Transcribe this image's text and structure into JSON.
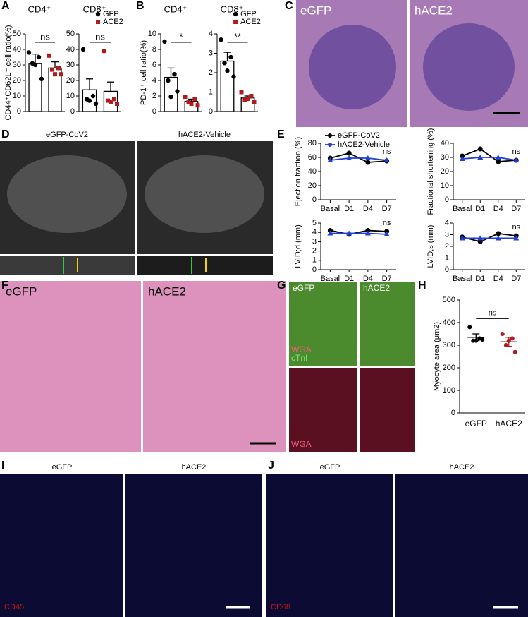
{
  "panel_labels": [
    "A",
    "B",
    "C",
    "D",
    "E",
    "F",
    "G",
    "H",
    "I",
    "J"
  ],
  "image_labels": {
    "C": [
      "eGFP",
      "hACE2"
    ],
    "D": [
      "eGFP-CoV2",
      "hACE2-Vehicle"
    ],
    "F": [
      "eGFP",
      "hACE2"
    ],
    "G": [
      "eGFP",
      "hACE2",
      "WGA",
      "cTnI",
      "WGA"
    ],
    "I": [
      "eGFP",
      "hACE2",
      "CD45"
    ],
    "J": [
      "eGFP",
      "hACE2",
      "CD68"
    ]
  },
  "chart_data": [
    {
      "type": "bar",
      "title": "CD4⁺",
      "y_label": "CD44⁺CD62L⁻ cell ratio(%)",
      "ylim": [
        0,
        50
      ],
      "yticks": [
        0,
        10,
        20,
        30,
        40,
        50
      ],
      "annotation": "ns",
      "series": [
        {
          "color": "#000000",
          "values": [
            31
          ],
          "errors": [
            6
          ],
          "points": [
            38,
            35,
            31,
            21,
            30
          ]
        },
        {
          "color": "#b01c1c",
          "values": [
            28
          ],
          "errors": [
            4
          ],
          "points": [
            36,
            28,
            27,
            24,
            24
          ]
        }
      ]
    },
    {
      "type": "bar",
      "title": "CD8⁺",
      "ylim": [
        0,
        50
      ],
      "yticks": [
        0,
        10,
        20,
        30,
        40,
        50
      ],
      "annotation": "ns",
      "series": [
        {
          "name": "GFP",
          "color": "#000000",
          "values": [
            14
          ],
          "errors": [
            7
          ],
          "points": [
            40,
            10,
            8,
            5,
            7
          ]
        },
        {
          "name": "ACE2",
          "color": "#b01c1c",
          "values": [
            13
          ],
          "errors": [
            6
          ],
          "points": [
            39,
            8,
            7,
            5,
            6
          ]
        }
      ]
    },
    {
      "type": "bar",
      "title": "CD4⁺",
      "y_label": "PD-1⁺ cell ratio(%)",
      "ylim": [
        0,
        10
      ],
      "yticks": [
        0,
        2,
        4,
        6,
        8,
        10
      ],
      "annotation": "*",
      "series": [
        {
          "color": "#000000",
          "values": [
            4.4
          ],
          "errors": [
            1.2
          ],
          "points": [
            9,
            4.8,
            4,
            2.6,
            1.9
          ]
        },
        {
          "color": "#b01c1c",
          "values": [
            1.3
          ],
          "errors": [
            0.3
          ],
          "points": [
            1.9,
            1.6,
            1.2,
            0.8,
            1.0
          ]
        }
      ]
    },
    {
      "type": "bar",
      "title": "CD8⁺",
      "ylim": [
        0,
        4
      ],
      "yticks": [
        0,
        1,
        2,
        3,
        4
      ],
      "annotation": "**",
      "series": [
        {
          "name": "GFP",
          "color": "#000000",
          "values": [
            2.6
          ],
          "errors": [
            0.45
          ],
          "points": [
            3.7,
            2.8,
            2.5,
            1.8,
            2.1
          ]
        },
        {
          "name": "ACE2",
          "color": "#b01c1c",
          "values": [
            0.7
          ],
          "errors": [
            0.1
          ],
          "points": [
            1.0,
            0.8,
            0.6,
            0.5,
            0.65
          ]
        }
      ]
    },
    {
      "type": "line",
      "y_label": "Ejection fraction (%)",
      "categories": [
        "Basal",
        "D1",
        "D4",
        "D7"
      ],
      "ylim": [
        0,
        80
      ],
      "yticks": [
        0,
        20,
        40,
        60,
        80
      ],
      "annotation": "ns",
      "series": [
        {
          "name": "eGFP-CoV2",
          "color": "#000000",
          "values": [
            59,
            66,
            53,
            55
          ]
        },
        {
          "name": "hACE2-Vehicle",
          "color": "#1f3fd6",
          "values": [
            56,
            59,
            59,
            56
          ]
        }
      ]
    },
    {
      "type": "line",
      "y_label": "Fractional shortening (%)",
      "categories": [
        "Basal",
        "D1",
        "D4",
        "D7"
      ],
      "ylim": [
        0,
        40
      ],
      "yticks": [
        0,
        10,
        20,
        30,
        40
      ],
      "annotation": "ns",
      "series": [
        {
          "color": "#000000",
          "values": [
            31,
            36,
            27,
            28
          ]
        },
        {
          "color": "#1f3fd6",
          "values": [
            29,
            30,
            30,
            28
          ]
        }
      ]
    },
    {
      "type": "line",
      "y_label": "LVID;d (mm)",
      "categories": [
        "Basal",
        "D1",
        "D4",
        "D7"
      ],
      "ylim": [
        0,
        5
      ],
      "yticks": [
        0,
        1,
        2,
        3,
        4,
        5
      ],
      "annotation": "ns",
      "series": [
        {
          "color": "#000000",
          "values": [
            4.2,
            3.8,
            4.2,
            4.1
          ]
        },
        {
          "color": "#1f3fd6",
          "values": [
            3.9,
            3.9,
            3.9,
            3.8
          ]
        }
      ]
    },
    {
      "type": "line",
      "y_label": "LVID;s (mm)",
      "categories": [
        "Basal",
        "D1",
        "D4",
        "D7"
      ],
      "ylim": [
        0,
        4
      ],
      "yticks": [
        0,
        1,
        2,
        3,
        4
      ],
      "annotation": "ns",
      "series": [
        {
          "color": "#000000",
          "values": [
            2.8,
            2.4,
            3.1,
            2.9
          ]
        },
        {
          "color": "#1f3fd6",
          "values": [
            2.7,
            2.7,
            2.7,
            2.7
          ]
        }
      ]
    },
    {
      "type": "strip",
      "y_label": "Myocyte area (μm2)",
      "categories": [
        "eGFP",
        "hACE2"
      ],
      "ylim": [
        0,
        500
      ],
      "yticks": [
        0,
        100,
        200,
        300,
        400,
        500
      ],
      "annotation": "ns",
      "colors": [
        "#000000",
        "#b01c1c"
      ],
      "values": [
        335,
        315
      ],
      "errors": [
        15,
        20
      ],
      "points": [
        [
          380,
          330,
          320,
          325,
          320
        ],
        [
          350,
          330,
          300,
          270,
          320
        ]
      ]
    }
  ]
}
